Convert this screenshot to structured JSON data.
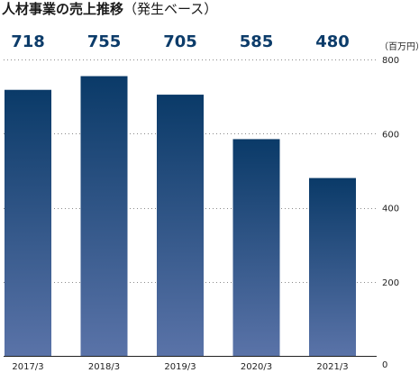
{
  "chart_data": {
    "type": "bar",
    "title": "人材事業の売上推移",
    "subtitle": "（発生ベース）",
    "unit": "（百万円）",
    "categories": [
      "2017/3",
      "2018/3",
      "2019/3",
      "2020/3",
      "2021/3"
    ],
    "values": [
      718,
      755,
      705,
      585,
      480
    ],
    "value_labels": [
      "718",
      "755",
      "705",
      "585",
      "480"
    ],
    "ylim": [
      0,
      800
    ],
    "yticks": [
      0,
      200,
      400,
      600,
      800
    ],
    "ytick_labels": [
      "0",
      "200",
      "400",
      "600",
      "800"
    ],
    "grid": true,
    "legend": "none",
    "colors": {
      "bar_top": "#0a3a68",
      "bar_bottom": "#5a73a8",
      "value_text": "#0c3c6a"
    }
  }
}
